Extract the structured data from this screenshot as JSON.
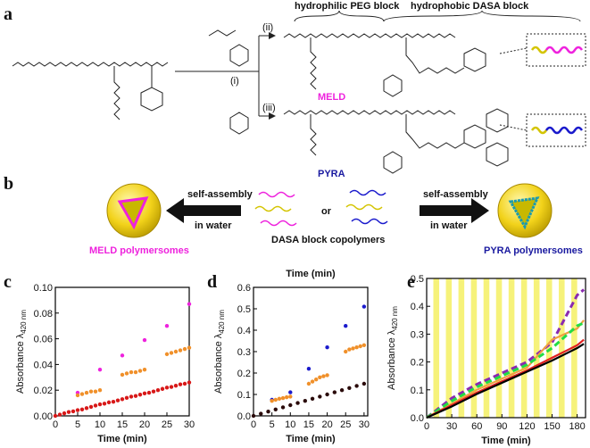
{
  "figure": {
    "panel_labels": [
      "a",
      "b",
      "c",
      "d",
      "e"
    ],
    "a": {
      "peg_block": "hydrophilic PEG block",
      "dasa_block": "hydrophobic DASA block",
      "step_i": "(i)",
      "step_ii": "(ii)",
      "step_iii": "(iii)",
      "meld": "MELD",
      "pyra": "PYRA"
    },
    "b": {
      "self_assembly_left": "self-assembly",
      "in_water_left": "in water",
      "or": "or",
      "copolymers": "DASA block copolymers",
      "self_assembly_right": "self-assembly",
      "in_water_right": "in water",
      "meld_polymersomes": "MELD polymersomes",
      "pyra_polymersomes": "PYRA polymersomes"
    }
  },
  "chart_data": [
    {
      "type": "scatter",
      "xlabel": "Time (min)",
      "ylabel": "Absorbance λ",
      "ylabel_sub": "420 nm",
      "xlim": [
        0,
        30
      ],
      "xticks": [
        0,
        5,
        10,
        15,
        20,
        25,
        30
      ],
      "ylim": [
        0,
        0.1
      ],
      "yticks": [
        {
          "value": 0,
          "label": "0.00"
        },
        0.02,
        0.04,
        0.06,
        0.08,
        {
          "value": 0.1,
          "label": "0.10"
        }
      ],
      "series": [
        {
          "color": "#ee22dd",
          "x": [
            5,
            10,
            15,
            20,
            25,
            30
          ],
          "values": [
            0.018,
            0.036,
            0.047,
            0.059,
            0.07,
            0.087
          ]
        },
        {
          "color": "#f0902a",
          "x": [
            5,
            6,
            7,
            8,
            9,
            10,
            15,
            16,
            17,
            18,
            19,
            20,
            25,
            26,
            27,
            28,
            29,
            30
          ],
          "values": [
            0.016,
            0.017,
            0.018,
            0.019,
            0.019,
            0.02,
            0.032,
            0.033,
            0.034,
            0.034,
            0.035,
            0.036,
            0.048,
            0.049,
            0.05,
            0.051,
            0.052,
            0.053
          ]
        },
        {
          "color": "#d81818",
          "x": [
            0,
            1,
            2,
            3,
            4,
            5,
            6,
            7,
            8,
            9,
            10,
            11,
            12,
            13,
            14,
            15,
            16,
            17,
            18,
            19,
            20,
            21,
            22,
            23,
            24,
            25,
            26,
            27,
            28,
            29,
            30
          ],
          "values": [
            0,
            0.001,
            0.002,
            0.003,
            0.0035,
            0.0045,
            0.005,
            0.006,
            0.007,
            0.008,
            0.009,
            0.0095,
            0.0105,
            0.011,
            0.012,
            0.013,
            0.014,
            0.015,
            0.0155,
            0.0165,
            0.0175,
            0.018,
            0.019,
            0.02,
            0.021,
            0.022,
            0.0225,
            0.0235,
            0.0245,
            0.025,
            0.026
          ]
        }
      ]
    },
    {
      "type": "scatter",
      "title": "Time (min)",
      "xlabel": "Time (min)",
      "ylabel": "Absorbance λ",
      "ylabel_sub": "420 nm",
      "xlim": [
        0,
        31
      ],
      "xticks": [
        0,
        5,
        10,
        15,
        20,
        25,
        30
      ],
      "ylim": [
        0,
        0.6
      ],
      "yticks": [
        {
          "value": 0,
          "label": "0.0"
        },
        0.1,
        0.2,
        0.3,
        0.4,
        0.5,
        0.6
      ],
      "series": [
        {
          "color": "#1a1acc",
          "x": [
            5,
            10,
            15,
            20,
            25,
            30
          ],
          "values": [
            0.075,
            0.11,
            0.22,
            0.32,
            0.42,
            0.51
          ]
        },
        {
          "color": "#f0902a",
          "x": [
            5,
            6,
            7,
            8,
            9,
            10,
            15,
            16,
            17,
            18,
            19,
            20,
            25,
            26,
            27,
            28,
            29,
            30
          ],
          "values": [
            0.07,
            0.075,
            0.08,
            0.083,
            0.087,
            0.09,
            0.15,
            0.16,
            0.17,
            0.18,
            0.185,
            0.19,
            0.3,
            0.31,
            0.315,
            0.32,
            0.325,
            0.33
          ]
        },
        {
          "color": "#2a0a0a",
          "x": [
            0,
            2,
            4,
            6,
            8,
            10,
            12,
            14,
            16,
            18,
            20,
            22,
            24,
            26,
            28,
            30
          ],
          "values": [
            0,
            0.01,
            0.02,
            0.03,
            0.04,
            0.05,
            0.06,
            0.07,
            0.08,
            0.09,
            0.1,
            0.11,
            0.12,
            0.13,
            0.14,
            0.15
          ]
        }
      ]
    },
    {
      "type": "line",
      "xlabel": "Time (min)",
      "ylabel": "Absorbance λ",
      "ylabel_sub": "420 nm",
      "xlim": [
        0,
        190
      ],
      "xticks": [
        0,
        30,
        60,
        90,
        120,
        150,
        180
      ],
      "ylim": [
        0,
        0.5
      ],
      "yticks": [
        {
          "value": 0,
          "label": "0.0"
        },
        0.1,
        0.2,
        0.3,
        0.4,
        0.5
      ],
      "shaded": [
        [
          8,
          15
        ],
        [
          23,
          30
        ],
        [
          38,
          45
        ],
        [
          53,
          60
        ],
        [
          68,
          75
        ],
        [
          83,
          90
        ],
        [
          98,
          105
        ],
        [
          113,
          120
        ],
        [
          128,
          135
        ],
        [
          143,
          150
        ],
        [
          158,
          165
        ],
        [
          173,
          180
        ]
      ],
      "shade_color": "#f6f27a",
      "x": [
        0,
        30,
        60,
        90,
        120,
        150,
        180,
        188
      ],
      "series": [
        {
          "color": "#8a2ab0",
          "dash": true,
          "values": [
            0,
            0.07,
            0.12,
            0.16,
            0.2,
            0.27,
            0.44,
            0.46
          ]
        },
        {
          "color": "#f0a040",
          "dash": false,
          "values": [
            0,
            0.05,
            0.1,
            0.14,
            0.18,
            0.28,
            0.32,
            0.35
          ]
        },
        {
          "color": "#22dd44",
          "dash": true,
          "values": [
            0,
            0.06,
            0.11,
            0.15,
            0.19,
            0.25,
            0.33,
            0.34
          ]
        },
        {
          "color": "#e02020",
          "dash": false,
          "values": [
            0,
            0.045,
            0.09,
            0.13,
            0.17,
            0.215,
            0.26,
            0.28
          ]
        },
        {
          "color": "#000000",
          "dash": false,
          "values": [
            0,
            0.04,
            0.085,
            0.125,
            0.165,
            0.205,
            0.25,
            0.265
          ]
        }
      ]
    }
  ]
}
